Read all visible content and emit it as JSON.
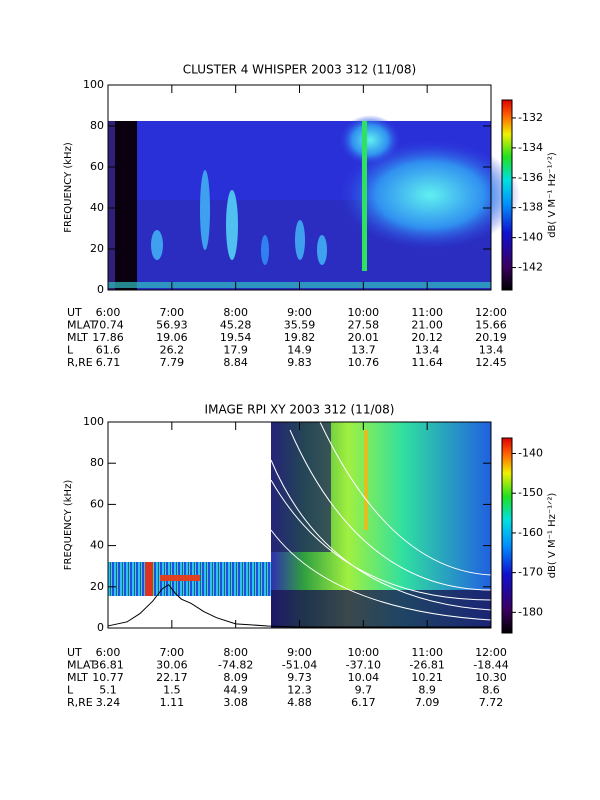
{
  "chart_data": [
    {
      "type": "spectrogram",
      "title": "CLUSTER 4 WHISPER 2003 312 (11/08)",
      "ylabel": "FREQUENCY (kHz)",
      "xlim": [
        6,
        12
      ],
      "ylim": [
        0,
        100
      ],
      "yticks": [
        0,
        20,
        40,
        60,
        80,
        100
      ],
      "xticks": [
        {
          "value": 6,
          "label": "6:00"
        },
        {
          "value": 7,
          "label": "7:00"
        },
        {
          "value": 8,
          "label": "8:00"
        },
        {
          "value": 9,
          "label": "9:00"
        },
        {
          "value": 10,
          "label": "10:00"
        },
        {
          "value": 11,
          "label": "11:00"
        },
        {
          "value": 12,
          "label": "12:00"
        }
      ],
      "time_label": "UT",
      "ephemeris": [
        {
          "name": "MLAT",
          "values": [
            70.74,
            56.93,
            45.28,
            35.59,
            27.58,
            21.0,
            15.66
          ],
          "value_labels": [
            "70.74",
            "56.93",
            "45.28",
            "35.59",
            "27.58",
            "21.00",
            "15.66"
          ]
        },
        {
          "name": "MLT",
          "values": [
            17.86,
            19.06,
            19.54,
            19.82,
            20.01,
            20.12,
            20.19
          ]
        },
        {
          "name": "L",
          "values": [
            61.6,
            26.2,
            17.9,
            14.9,
            13.7,
            13.4,
            13.4
          ]
        },
        {
          "name": "R,RE",
          "values": [
            6.71,
            7.79,
            8.84,
            9.83,
            10.76,
            11.64,
            12.45
          ]
        }
      ],
      "colorbar": {
        "label": "dB( V M⁻¹ Hz⁻¹ᐟ²)",
        "lim": [
          -143.5,
          -130.8
        ],
        "ticks": [
          -142,
          -140,
          -138,
          -136,
          -134,
          -132
        ]
      }
    },
    {
      "type": "spectrogram",
      "title": "IMAGE RPI XY 2003 312 (11/08)",
      "ylabel": "FREQUENCY (kHz)",
      "xlim": [
        6,
        12
      ],
      "ylim": [
        0,
        100
      ],
      "yticks": [
        0,
        20,
        40,
        60,
        80,
        100
      ],
      "xticks": [
        {
          "value": 6,
          "label": "6:00"
        },
        {
          "value": 7,
          "label": "7:00"
        },
        {
          "value": 8,
          "label": "8:00"
        },
        {
          "value": 9,
          "label": "9:00"
        },
        {
          "value": 10,
          "label": "10:00"
        },
        {
          "value": 11,
          "label": "11:00"
        },
        {
          "value": 12,
          "label": "12:00"
        }
      ],
      "time_label": "UT",
      "ephemeris": [
        {
          "name": "MLAT",
          "values": [
            36.81,
            30.06,
            -74.82,
            -51.04,
            -37.1,
            -26.81,
            -18.44
          ],
          "value_labels": [
            "36.81",
            "30.06",
            "-74.82",
            "-51.04",
            "-37.10",
            "-26.81",
            "-18.44"
          ]
        },
        {
          "name": "MLT",
          "values": [
            10.77,
            22.17,
            8.09,
            9.73,
            10.04,
            10.21,
            10.3
          ],
          "value_labels": [
            "10.77",
            "22.17",
            "8.09",
            "9.73",
            "10.04",
            "10.21",
            "10.30"
          ]
        },
        {
          "name": "L",
          "values": [
            5.1,
            1.5,
            44.9,
            12.3,
            9.7,
            8.9,
            8.6
          ]
        },
        {
          "name": "R,RE",
          "values": [
            3.24,
            1.11,
            3.08,
            4.88,
            6.17,
            7.09,
            7.72
          ]
        }
      ],
      "curve": {
        "color": "#000000",
        "x": [
          6.0,
          6.3,
          6.5,
          6.7,
          6.85,
          6.95,
          7.05,
          7.15,
          7.3,
          7.5,
          7.7,
          8.0,
          8.5,
          9.0,
          12.0
        ],
        "values": [
          1,
          3,
          7,
          13,
          19,
          21,
          17,
          14,
          12,
          8,
          5,
          2,
          1,
          0.5,
          0.5
        ]
      },
      "colorbar": {
        "label": "dB( V M⁻¹ Hz⁻¹ᐟ²)",
        "lim": [
          -185.2,
          -136.1
        ],
        "ticks": [
          -180,
          -170,
          -160,
          -150,
          -140
        ]
      }
    }
  ]
}
